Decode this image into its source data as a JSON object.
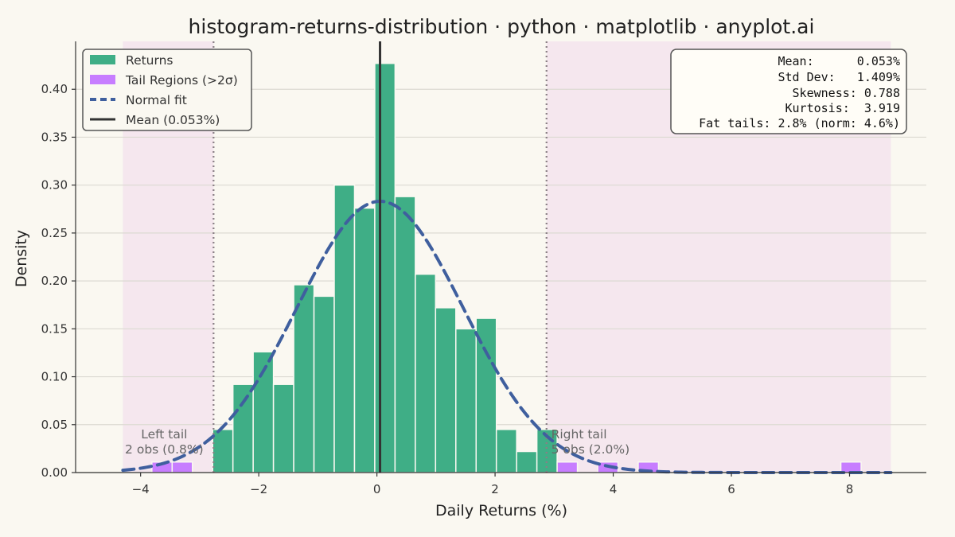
{
  "chart_data": {
    "type": "bar",
    "title": "histogram-returns-distribution · python · matplotlib · anyplot.ai",
    "xlabel": "Daily Returns (%)",
    "ylabel": "Density",
    "xlim": [
      -5.1,
      9.3
    ],
    "ylim": [
      0,
      0.45
    ],
    "xticks": [
      -4,
      -2,
      0,
      2,
      4,
      6,
      8
    ],
    "yticks": [
      0.0,
      0.05,
      0.1,
      0.15,
      0.2,
      0.25,
      0.3,
      0.35,
      0.4
    ],
    "xtick_labels": [
      "−4",
      "−2",
      "0",
      "2",
      "4",
      "6",
      "8"
    ],
    "ytick_labels": [
      "0.00",
      "0.05",
      "0.10",
      "0.15",
      "0.20",
      "0.25",
      "0.30",
      "0.35",
      "0.40"
    ],
    "grid": "horizontal",
    "bin_width": 0.343,
    "series": [
      {
        "name": "Returns",
        "color": "#3FAE86",
        "bins_left": [
          -2.78,
          -2.437,
          -2.094,
          -1.751,
          -1.408,
          -1.065,
          -0.722,
          -0.379,
          -0.036,
          0.307,
          0.65,
          0.993,
          1.336,
          1.679,
          2.022,
          2.365,
          2.708
        ],
        "values": [
          0.045,
          0.092,
          0.126,
          0.092,
          0.196,
          0.184,
          0.3,
          0.276,
          0.427,
          0.288,
          0.207,
          0.172,
          0.15,
          0.161,
          0.045,
          0.022,
          0.045
        ]
      },
      {
        "name": "Tail Regions (>2σ)",
        "color": "#C77DFF",
        "bins_left": [
          -3.809,
          -3.466,
          3.051,
          3.737,
          4.423,
          7.853
        ],
        "values": [
          0.011,
          0.011,
          0.011,
          0.011,
          0.011,
          0.011
        ]
      }
    ],
    "normal_fit": {
      "name": "Normal fit",
      "mean": 0.053,
      "std": 1.409,
      "x_range": [
        -4.3,
        8.7
      ],
      "color": "#3F5F9E"
    },
    "mean_line": {
      "name": "Mean (0.053%)",
      "x": 0.053,
      "color": "#333333"
    },
    "sigma_lines": [
      -2.765,
      2.871
    ],
    "shaded_regions": [
      [
        -4.3,
        -2.765
      ],
      [
        2.871,
        8.7
      ]
    ],
    "shade_color": "#F1DCEC",
    "legend": {
      "placement": "top-left",
      "entries": [
        "Returns",
        "Tail Regions (>2σ)",
        "Normal fit",
        "Mean (0.053%)"
      ]
    },
    "stats_box": {
      "placement": "top-right",
      "lines": [
        "Mean:      0.053%",
        "Std Dev:   1.409%",
        "Skewness: 0.788",
        "Kurtosis:  3.919",
        "Fat tails: 2.8% (norm: 4.6%)"
      ]
    },
    "annotations": {
      "left_tail": {
        "lines": [
          "Left tail",
          "2 obs (0.8%)"
        ],
        "x": -3.4
      },
      "right_tail": {
        "lines": [
          "Right tail",
          "5 obs (2.0%)"
        ],
        "x": 3.6
      }
    }
  }
}
